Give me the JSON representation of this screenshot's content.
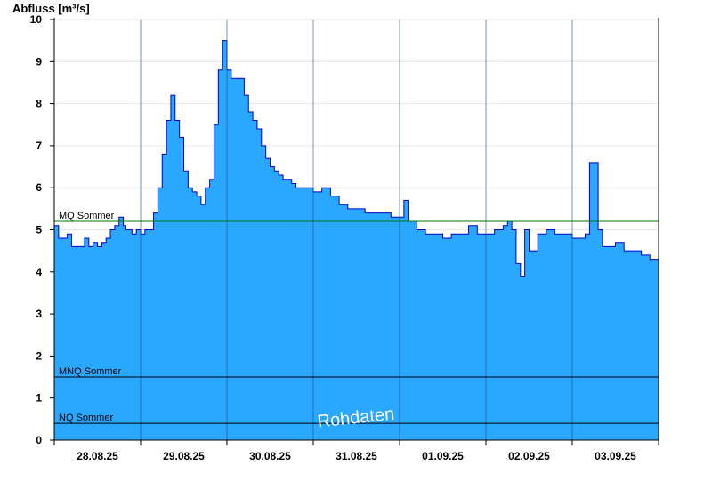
{
  "chart_data": {
    "type": "area",
    "ylabel": "Abfluss [m³/s]",
    "ylim": [
      0,
      10
    ],
    "yticks": [
      0,
      1,
      2,
      3,
      4,
      5,
      6,
      7,
      8,
      9,
      10
    ],
    "xlim_days": [
      0,
      7
    ],
    "x_tick_labels": [
      "28.08.25",
      "29.08.25",
      "30.08.25",
      "31.08.25",
      "01.09.25",
      "02.09.25",
      "03.09.25"
    ],
    "grid": true,
    "colors": {
      "fill": "#2aa7ff",
      "line": "#0000cc",
      "mq_line": "#007700",
      "ref_line": "#000000"
    },
    "reference_lines": [
      {
        "name": "MQ Sommer",
        "value": 5.2
      },
      {
        "name": "MNQ Sommer",
        "value": 1.5
      },
      {
        "name": "NQ Sommer",
        "value": 0.4
      }
    ],
    "annotation": "Rohdaten",
    "series": [
      {
        "x": [
          0,
          0.05,
          0.1,
          0.15,
          0.2,
          0.25,
          0.3,
          0.35,
          0.4,
          0.45,
          0.5,
          0.55,
          0.6,
          0.65,
          0.7,
          0.75,
          0.8,
          0.83,
          0.86,
          0.9,
          0.95,
          1.0,
          1.05,
          1.1,
          1.15,
          1.2,
          1.25,
          1.3,
          1.35,
          1.4,
          1.45,
          1.5,
          1.55,
          1.6,
          1.65,
          1.7,
          1.75,
          1.8,
          1.85,
          1.9,
          1.95,
          2.0,
          2.05,
          2.1,
          2.15,
          2.2,
          2.25,
          2.3,
          2.35,
          2.4,
          2.45,
          2.5,
          2.55,
          2.6,
          2.65,
          2.7,
          2.75,
          2.8,
          2.85,
          2.9,
          2.95,
          3.0,
          3.1,
          3.2,
          3.3,
          3.4,
          3.5,
          3.6,
          3.7,
          3.8,
          3.9,
          4.0,
          4.05,
          4.1,
          4.2,
          4.3,
          4.4,
          4.5,
          4.6,
          4.7,
          4.8,
          4.9,
          5.0,
          5.1,
          5.2,
          5.25,
          5.3,
          5.35,
          5.4,
          5.45,
          5.5,
          5.6,
          5.7,
          5.8,
          5.9,
          6.0,
          6.1,
          6.15,
          6.2,
          6.25,
          6.3,
          6.35,
          6.4,
          6.5,
          6.6,
          6.7,
          6.8,
          6.9,
          7.0
        ],
        "y": [
          5.1,
          4.8,
          4.8,
          4.9,
          4.6,
          4.6,
          4.6,
          4.8,
          4.6,
          4.7,
          4.6,
          4.7,
          4.8,
          5.0,
          5.1,
          5.3,
          5.1,
          5.0,
          5.0,
          4.9,
          5.0,
          4.9,
          5.0,
          5.0,
          5.4,
          6.0,
          6.8,
          7.6,
          8.2,
          7.6,
          7.2,
          6.4,
          6.0,
          5.9,
          5.8,
          5.6,
          6.0,
          6.2,
          7.5,
          8.8,
          9.5,
          8.8,
          8.6,
          8.6,
          8.6,
          8.2,
          7.8,
          7.6,
          7.4,
          7.0,
          6.7,
          6.5,
          6.4,
          6.3,
          6.2,
          6.2,
          6.1,
          6.0,
          6.0,
          6.0,
          6.0,
          5.9,
          6.0,
          5.8,
          5.6,
          5.5,
          5.5,
          5.4,
          5.4,
          5.4,
          5.3,
          5.3,
          5.7,
          5.2,
          5.0,
          4.9,
          4.9,
          4.8,
          4.9,
          4.9,
          5.1,
          4.9,
          4.9,
          5.0,
          5.1,
          5.2,
          5.0,
          4.2,
          3.9,
          5.0,
          4.5,
          4.9,
          5.0,
          4.9,
          4.9,
          4.8,
          4.8,
          4.9,
          6.6,
          6.6,
          5.0,
          4.6,
          4.6,
          4.7,
          4.5,
          4.5,
          4.4,
          4.3,
          4.2
        ]
      }
    ]
  }
}
